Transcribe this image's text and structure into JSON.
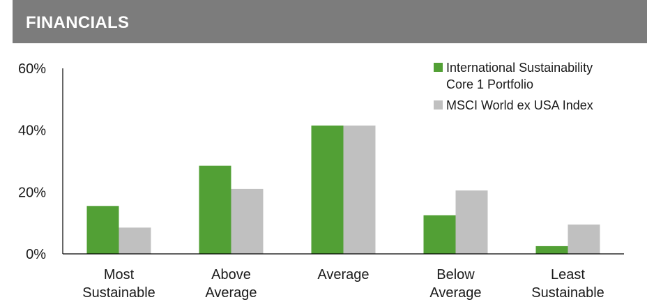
{
  "header": {
    "title": "FINANCIALS"
  },
  "colors": {
    "header_bg": "#7c7c7c",
    "series_1": "#52a035",
    "series_2": "#c0c0c0",
    "axis": "#000000"
  },
  "chart_data": {
    "type": "bar",
    "title": "",
    "xlabel": "",
    "ylabel": "",
    "ylim": [
      0,
      60
    ],
    "yticks": [
      0,
      20,
      40,
      60
    ],
    "ytick_labels": [
      "0%",
      "20%",
      "40%",
      "60%"
    ],
    "grid": false,
    "legend_position": "top-right",
    "categories": [
      [
        "Most",
        "Sustainable"
      ],
      [
        "Above",
        "Average"
      ],
      [
        "Average"
      ],
      [
        "Below",
        "Average"
      ],
      [
        "Least",
        "Sustainable"
      ]
    ],
    "series": [
      {
        "name": "International Sustainability Core 1 Portfolio",
        "legend_lines": [
          "International Sustainability",
          "Core 1 Portfolio"
        ],
        "color": "#52a035",
        "values": [
          15.5,
          28.5,
          41.5,
          12.5,
          2.5
        ]
      },
      {
        "name": "MSCI World ex USA Index",
        "legend_lines": [
          "MSCI World ex USA Index"
        ],
        "color": "#c0c0c0",
        "values": [
          8.5,
          21,
          41.5,
          20.5,
          9.5
        ]
      }
    ]
  }
}
